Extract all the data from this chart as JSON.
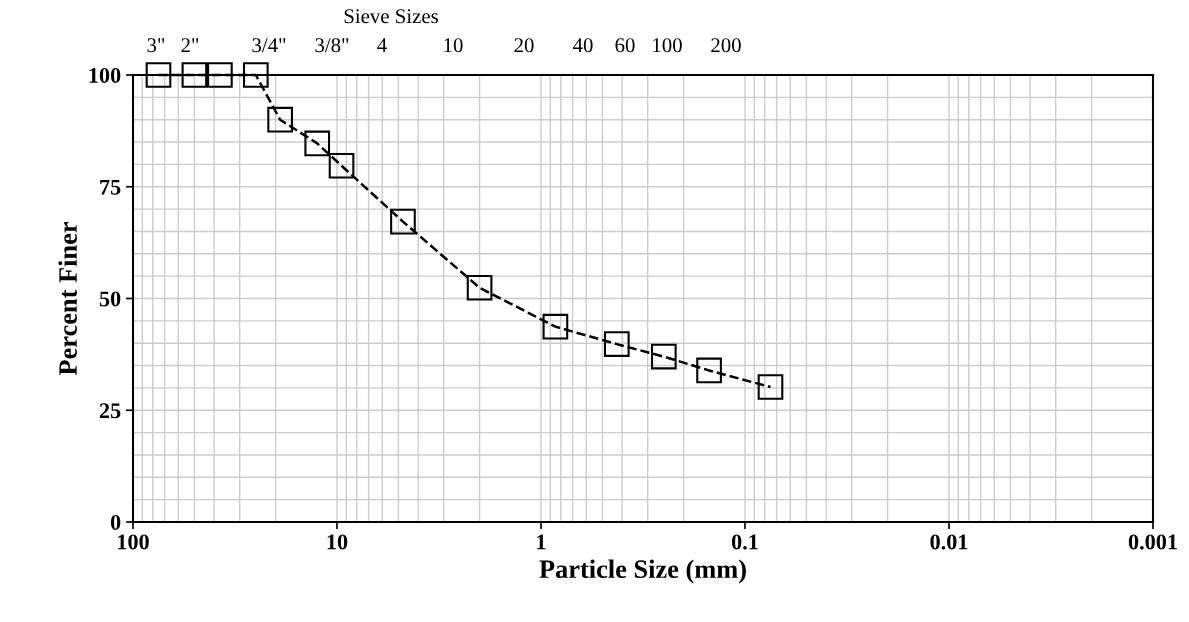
{
  "chart_data": {
    "type": "line",
    "xlabel": "Particle Size (mm)",
    "ylabel": "Percent Finer",
    "x": [
      75,
      50,
      37.5,
      25,
      19,
      12.5,
      9.5,
      4.75,
      2,
      0.85,
      0.425,
      0.25,
      0.15,
      0.075
    ],
    "series": [
      {
        "color": "#000000",
        "values": [
          100,
          100,
          100,
          100,
          90,
          84.7,
          79.7,
          67.2,
          52.4,
          43.7,
          39.8,
          37.0,
          33.9,
          30.2
        ]
      }
    ],
    "log": "x",
    "xlim": [
      100,
      0.001
    ],
    "xticks": [
      100,
      10,
      1,
      0.1,
      0.01,
      0.001
    ],
    "ylim": [
      0,
      100
    ],
    "yticks": [
      0,
      {
        "value": 5,
        "label": null
      },
      {
        "value": 10,
        "label": null
      },
      {
        "value": 15,
        "label": null
      },
      {
        "value": 20,
        "label": null
      },
      25,
      {
        "value": 30,
        "label": null
      },
      {
        "value": 35,
        "label": null
      },
      {
        "value": 40,
        "label": null
      },
      {
        "value": 45,
        "label": null
      },
      50,
      {
        "value": 55,
        "label": null
      },
      {
        "value": 60,
        "label": null
      },
      {
        "value": 65,
        "label": null
      },
      {
        "value": 70,
        "label": null
      },
      75,
      {
        "value": 80,
        "label": null
      },
      {
        "value": 85,
        "label": null
      },
      {
        "value": 90,
        "label": null
      },
      {
        "value": 95,
        "label": null
      },
      100
    ],
    "annotations": [
      "Sieve Sizes",
      "3\"",
      "2\"",
      "3/4\"",
      "3/8\"",
      "4",
      "10",
      "20",
      "40",
      "60",
      "100",
      "200"
    ],
    "grid": true,
    "marker": "square",
    "line_style": "dashed",
    "legend": false
  }
}
